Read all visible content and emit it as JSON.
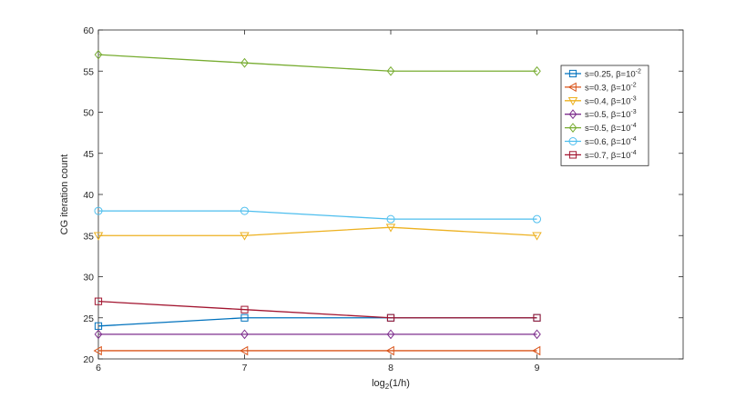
{
  "chart_data": {
    "type": "line",
    "title": "",
    "xlabel": "log",
    "xlabel_sub": "2",
    "xlabel_tail": "(1/h)",
    "ylabel": "CG iteration count",
    "x": [
      6,
      7,
      8,
      9
    ],
    "xlim": [
      6,
      10
    ],
    "ylim": [
      20,
      60
    ],
    "xticks": [
      6,
      7,
      8,
      9
    ],
    "yticks": [
      20,
      25,
      30,
      35,
      40,
      45,
      50,
      55,
      60
    ],
    "grid": false,
    "legend_position": "top-right",
    "series": [
      {
        "name": "s=0.25, β=10",
        "exp": "-2",
        "color": "#0072BD",
        "marker": "square",
        "values": [
          24,
          25,
          25,
          25
        ]
      },
      {
        "name": "s=0.3, β=10",
        "exp": "-2",
        "color": "#D95319",
        "marker": "triangle-left",
        "values": [
          21,
          21,
          21,
          21
        ]
      },
      {
        "name": "s=0.4, β=10",
        "exp": "-3",
        "color": "#EDB120",
        "marker": "triangle-down",
        "values": [
          35,
          35,
          36,
          35
        ]
      },
      {
        "name": "s=0.5, β=10",
        "exp": "-3",
        "color": "#7E2F8E",
        "marker": "diamond",
        "values": [
          23,
          23,
          23,
          23
        ]
      },
      {
        "name": "s=0.5, β=10",
        "exp": "-4",
        "color": "#77AC30",
        "marker": "diamond",
        "values": [
          57,
          56,
          55,
          55
        ]
      },
      {
        "name": "s=0.6, β=10",
        "exp": "-4",
        "color": "#4DBEEE",
        "marker": "circle",
        "values": [
          38,
          38,
          37,
          37
        ]
      },
      {
        "name": "s=0.7, β=10",
        "exp": "-4",
        "color": "#A2142F",
        "marker": "square",
        "values": [
          27,
          26,
          25,
          25
        ]
      }
    ]
  }
}
